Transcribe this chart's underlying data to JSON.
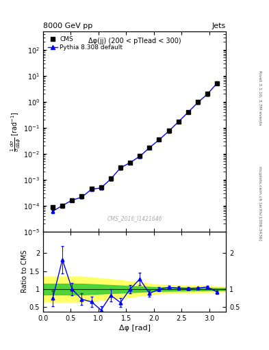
{
  "title": "8000 GeV pp",
  "title_right": "Jets",
  "annotation": "Δφ(jj) (200 < pTlead < 300)",
  "watermark": "CMS_2016_I1421646",
  "rivet_label": "Rivet 3.1.10, 3.7M events",
  "arxiv_label": "mcplots.cern.ch [arXiv:1306.3436]",
  "xlabel": "Δφ [rad]",
  "ylabel": "$\\frac{1}{\\sigma}\\frac{d\\sigma}{d\\Delta\\phi}$ [rad$^{-1}$]",
  "ylabel_ratio": "Ratio to CMS",
  "xlim": [
    0.0,
    3.3
  ],
  "ylim_main": [
    1e-05,
    500
  ],
  "ylim_ratio": [
    0.38,
    2.6
  ],
  "cms_x": [
    0.175,
    0.349,
    0.524,
    0.698,
    0.873,
    1.047,
    1.222,
    1.396,
    1.571,
    1.745,
    1.92,
    2.094,
    2.269,
    2.443,
    2.618,
    2.793,
    2.967,
    3.142
  ],
  "cms_y": [
    8.5e-05,
    9.5e-05,
    0.00016,
    0.00023,
    0.00045,
    0.0005,
    0.0011,
    0.003,
    0.0045,
    0.008,
    0.017,
    0.035,
    0.075,
    0.17,
    0.4,
    0.95,
    2.0,
    5.0
  ],
  "cms_yerr": [
    1.5e-05,
    1.5e-05,
    2e-05,
    3e-05,
    5e-05,
    6e-05,
    0.0001,
    0.0002,
    0.0003,
    0.0004,
    0.0008,
    0.0015,
    0.003,
    0.007,
    0.015,
    0.03,
    0.06,
    0.15
  ],
  "mc_x": [
    0.175,
    0.349,
    0.524,
    0.698,
    0.873,
    1.047,
    1.222,
    1.396,
    1.571,
    1.745,
    1.92,
    2.094,
    2.269,
    2.443,
    2.618,
    2.793,
    2.967,
    3.142
  ],
  "mc_y": [
    6e-05,
    0.0001,
    0.00016,
    0.00021,
    0.00042,
    0.00048,
    0.00105,
    0.0028,
    0.0045,
    0.0078,
    0.0168,
    0.034,
    0.073,
    0.168,
    0.39,
    0.93,
    1.95,
    5.2
  ],
  "mc_yerr": [
    1e-05,
    5e-06,
    8e-06,
    1e-05,
    2e-05,
    3e-05,
    5e-05,
    0.0001,
    0.00015,
    0.0002,
    0.0004,
    0.0007,
    0.0015,
    0.003,
    0.007,
    0.015,
    0.04,
    0.1
  ],
  "ratio_y": [
    0.75,
    1.82,
    1.0,
    0.72,
    0.65,
    0.42,
    0.83,
    0.63,
    1.0,
    1.28,
    0.88,
    1.0,
    1.05,
    1.03,
    1.02,
    1.03,
    1.06,
    0.92
  ],
  "ratio_yerr": [
    0.22,
    0.38,
    0.18,
    0.16,
    0.14,
    0.11,
    0.17,
    0.12,
    0.11,
    0.17,
    0.08,
    0.06,
    0.05,
    0.04,
    0.04,
    0.035,
    0.04,
    0.05
  ],
  "green_band_x": [
    0.0,
    0.7,
    1.4,
    2.1,
    3.3
  ],
  "green_band_lo": [
    0.85,
    0.85,
    0.9,
    0.95,
    0.97
  ],
  "green_band_hi": [
    1.15,
    1.15,
    1.1,
    1.05,
    1.03
  ],
  "yellow_band_x": [
    0.0,
    0.7,
    1.4,
    2.1,
    3.3
  ],
  "yellow_band_lo": [
    0.65,
    0.65,
    0.75,
    0.88,
    0.93
  ],
  "yellow_band_hi": [
    1.35,
    1.35,
    1.25,
    1.12,
    1.07
  ],
  "cms_color": "black",
  "mc_color": "blue",
  "cms_marker": "s",
  "mc_marker": "^",
  "bg_color": "#ffffff",
  "green_color": "#33cc33",
  "yellow_color": "#ffff66"
}
